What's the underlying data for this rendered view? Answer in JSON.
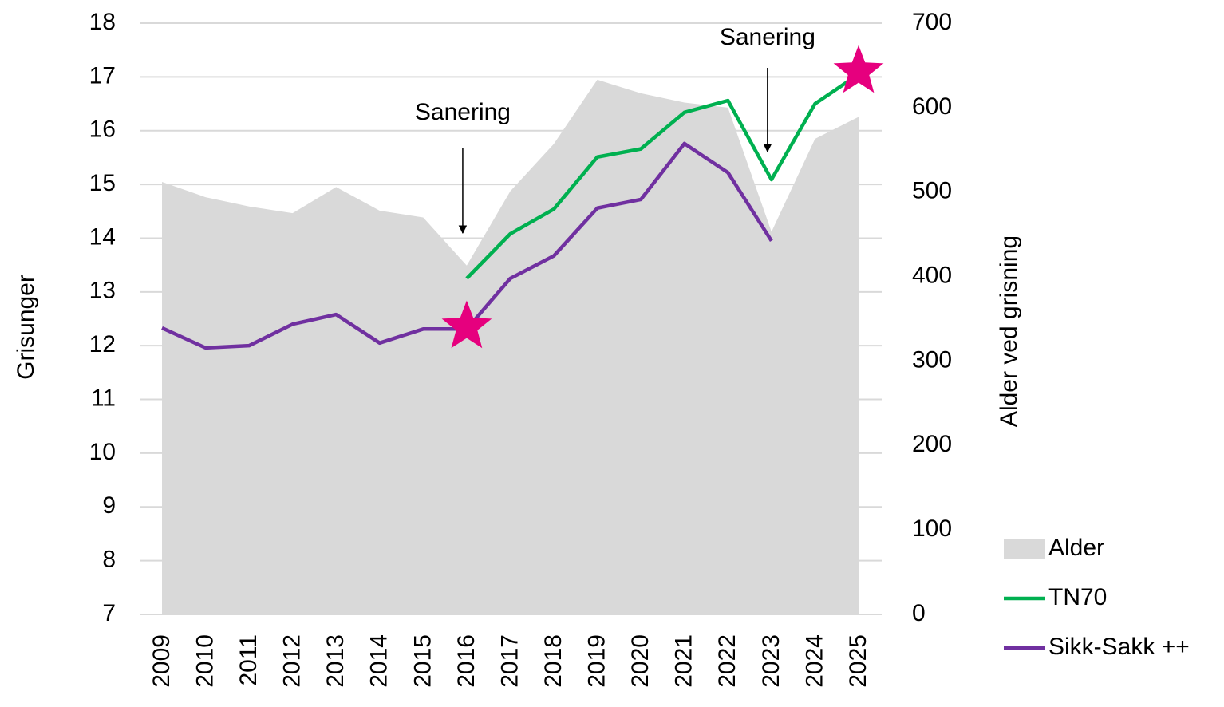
{
  "chart_data": {
    "type": "line",
    "y_label": "Grisunger",
    "y2_label": "Alder ved grisning",
    "categories": [
      "2009",
      "2010",
      "2011",
      "2012",
      "2013",
      "2014",
      "2015",
      "2016",
      "2017",
      "2018",
      "2019",
      "2020",
      "2021",
      "2022",
      "2023",
      "2024",
      "2025"
    ],
    "ylim": [
      7,
      18
    ],
    "yticks": [
      7,
      8,
      9,
      10,
      11,
      12,
      13,
      14,
      15,
      16,
      17,
      18
    ],
    "y2lim": [
      0,
      700
    ],
    "y2ticks": [
      0,
      100,
      200,
      300,
      400,
      500,
      600,
      700
    ],
    "grid": true,
    "legend": "bottom-right",
    "series": [
      {
        "name": "Alder",
        "kind": "area",
        "axis": "y2",
        "color": "#d9d9d9",
        "values": [
          512,
          494,
          483,
          475,
          506,
          478,
          470,
          413,
          501,
          557,
          633,
          617,
          606,
          600,
          453,
          563,
          589
        ]
      },
      {
        "name": "TN70",
        "kind": "line",
        "color": "#00b050",
        "values": [
          null,
          null,
          null,
          null,
          null,
          null,
          null,
          13.25,
          14.08,
          14.54,
          15.51,
          15.66,
          16.34,
          16.56,
          15.09,
          16.5,
          17.05
        ]
      },
      {
        "name": "Sikk-Sakk ++",
        "kind": "line",
        "color": "#7030a0",
        "values": [
          12.33,
          11.96,
          12.0,
          12.4,
          12.58,
          12.05,
          12.31,
          12.31,
          13.25,
          13.67,
          14.56,
          14.72,
          15.76,
          15.22,
          13.95,
          null,
          null
        ]
      }
    ],
    "stars": {
      "color": "#e6007e",
      "points": [
        {
          "category": "2016",
          "value": 12.35
        },
        {
          "category": "2025",
          "value": 17.1
        }
      ]
    },
    "annotations": [
      {
        "text": "Sanering",
        "category": "2016"
      },
      {
        "text": "Sanering",
        "category": "2023"
      }
    ]
  }
}
